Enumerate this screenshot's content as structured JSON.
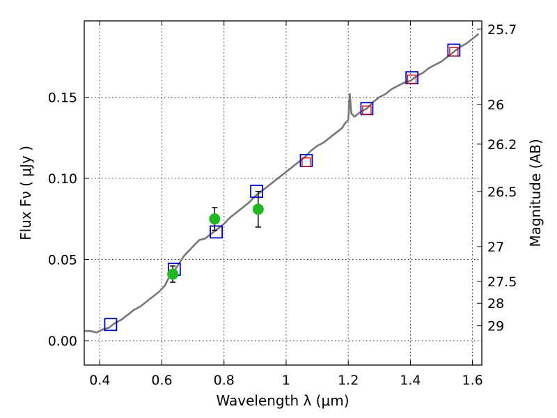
{
  "chart_data": {
    "type": "scatter",
    "xlabel": "Wavelength  λ (μm)",
    "ylabel": "Flux  Fν  ( μJy )",
    "ylabel_right": "Magnitude (AB)",
    "xlim": [
      0.35,
      1.63
    ],
    "ylim": [
      -0.015,
      0.197
    ],
    "x_ticks": [
      0.4,
      0.6,
      0.8,
      1.0,
      1.2,
      1.4,
      1.6
    ],
    "x_tick_labels": [
      "0.4",
      "0.6",
      "0.8",
      "1",
      "1.2",
      "1.4",
      "1.6"
    ],
    "y_ticks": [
      0.0,
      0.05,
      0.1,
      0.15
    ],
    "y_tick_labels": [
      "0.00",
      "0.05",
      "0.10",
      "0.15"
    ],
    "right_axis_ticks": [
      {
        "label": "25.7",
        "flux": 0.1919
      },
      {
        "label": "26",
        "flux": 0.1456
      },
      {
        "label": "26.2",
        "flux": 0.1211
      },
      {
        "label": "26.5",
        "flux": 0.0919
      },
      {
        "label": "27",
        "flux": 0.058
      },
      {
        "label": "27.5",
        "flux": 0.0366
      },
      {
        "label": "28",
        "flux": 0.0231
      },
      {
        "label": "29",
        "flux": 0.0092
      }
    ],
    "grid": true,
    "series": [
      {
        "style": "spectrum-line",
        "color": "#777777",
        "x": [
          0.35,
          0.37,
          0.39,
          0.41,
          0.43,
          0.45,
          0.47,
          0.49,
          0.51,
          0.53,
          0.55,
          0.57,
          0.59,
          0.61,
          0.62,
          0.63,
          0.64,
          0.65,
          0.66,
          0.67,
          0.68,
          0.7,
          0.72,
          0.74,
          0.76,
          0.78,
          0.8,
          0.82,
          0.84,
          0.86,
          0.88,
          0.9,
          0.92,
          0.94,
          0.96,
          0.98,
          1.0,
          1.02,
          1.04,
          1.06,
          1.08,
          1.1,
          1.12,
          1.14,
          1.16,
          1.18,
          1.19,
          1.2,
          1.205,
          1.21,
          1.22,
          1.24,
          1.26,
          1.28,
          1.3,
          1.32,
          1.34,
          1.36,
          1.38,
          1.4,
          1.42,
          1.44,
          1.46,
          1.48,
          1.5,
          1.52,
          1.54,
          1.56,
          1.58,
          1.6,
          1.62
        ],
        "y": [
          0.006,
          0.006,
          0.005,
          0.007,
          0.008,
          0.011,
          0.013,
          0.016,
          0.019,
          0.021,
          0.024,
          0.027,
          0.03,
          0.034,
          0.038,
          0.04,
          0.043,
          0.046,
          0.049,
          0.052,
          0.054,
          0.058,
          0.062,
          0.063,
          0.066,
          0.069,
          0.072,
          0.076,
          0.079,
          0.082,
          0.085,
          0.089,
          0.092,
          0.095,
          0.098,
          0.101,
          0.104,
          0.107,
          0.11,
          0.113,
          0.117,
          0.12,
          0.122,
          0.125,
          0.128,
          0.131,
          0.134,
          0.136,
          0.152,
          0.14,
          0.138,
          0.141,
          0.143,
          0.147,
          0.15,
          0.152,
          0.155,
          0.157,
          0.159,
          0.16,
          0.163,
          0.165,
          0.168,
          0.17,
          0.172,
          0.175,
          0.178,
          0.181,
          0.183,
          0.186,
          0.189
        ]
      },
      {
        "style": "blue-open-square",
        "color": "#0000cc",
        "x": [
          0.435,
          0.64,
          0.775,
          0.905,
          1.065,
          1.26,
          1.405,
          1.54
        ],
        "y": [
          0.01,
          0.044,
          0.067,
          0.092,
          0.111,
          0.143,
          0.162,
          0.179
        ]
      },
      {
        "style": "red-open-square",
        "color": "#dd0000",
        "x": [
          1.065,
          1.26,
          1.405,
          1.54
        ],
        "y": [
          0.11,
          0.142,
          0.161,
          0.178
        ]
      },
      {
        "style": "green-point-errorbar",
        "color": "#22b822",
        "x": [
          0.635,
          0.77,
          0.91
        ],
        "y": [
          0.041,
          0.075,
          0.081
        ],
        "yerr": [
          0.005,
          0.007,
          0.011
        ]
      }
    ]
  }
}
